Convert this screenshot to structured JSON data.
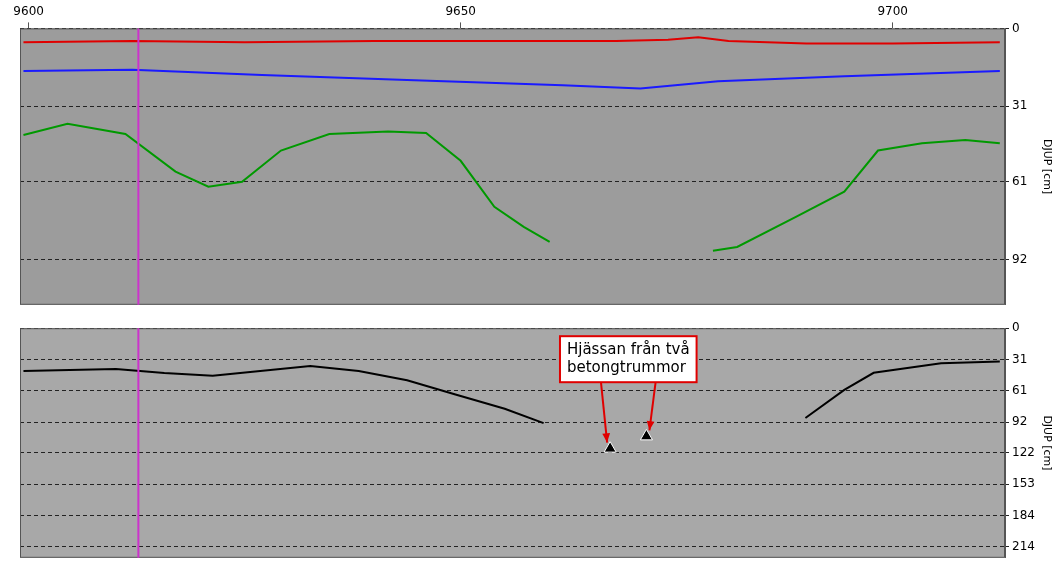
{
  "chart_data": [
    {
      "type": "line",
      "xlim": [
        9599,
        9713
      ],
      "xticks": [
        9600,
        9650,
        9700
      ],
      "ylim": [
        0,
        110
      ],
      "yticks": [
        0,
        31,
        61,
        92
      ],
      "y_label": "DJUP [cm]",
      "grid": true,
      "cursor": {
        "x": 9612.7,
        "color": "#cc33cc"
      },
      "series": [
        {
          "color": "#e00000",
          "x": [
            9599.4,
            9612,
            9625,
            9640,
            9655,
            9668,
            9674,
            9677.5,
            9681,
            9690,
            9700,
            9712.4
          ],
          "values": [
            5.5,
            5,
            5.5,
            5,
            5,
            5,
            4.5,
            3.5,
            5,
            6,
            6,
            5.5
          ]
        },
        {
          "color": "#1a1aff",
          "x": [
            9599.4,
            9612,
            9627,
            9643.8,
            9661.8,
            9670.8,
            9679.8,
            9694.4,
            9712.4
          ],
          "values": [
            17,
            16.5,
            18.5,
            20.5,
            22.6,
            23.9,
            21,
            19,
            17
          ]
        },
        {
          "color": "#009900",
          "x": [
            9599.4,
            9604.5,
            9611.2,
            9617,
            9620.8,
            9624.7,
            9629.2,
            9634.8,
            9641.6,
            9646,
            9650,
            9653.9,
            9657.3,
            9660.3,
            9670,
            9679.2,
            9682,
            9688.8,
            9694.4,
            9698.3,
            9703.4,
            9708.4,
            9712.4
          ],
          "values": [
            42.4,
            38,
            42,
            57,
            63,
            61,
            48.6,
            42,
            41,
            41.6,
            52.7,
            71,
            79,
            85,
            null,
            88.5,
            87,
            75,
            65,
            48.6,
            45.7,
            44.4,
            45.7
          ]
        }
      ]
    },
    {
      "type": "line",
      "xlim": [
        9599,
        9713
      ],
      "xticks": [
        9600,
        9650,
        9700
      ],
      "ylim": [
        0,
        225
      ],
      "yticks": [
        0,
        31,
        61,
        92,
        122,
        153,
        184,
        214
      ],
      "y_label": "DJUP [cm]",
      "grid": true,
      "tick_labels": "y",
      "cursor": {
        "x": 9612.7,
        "color": "#cc33cc"
      },
      "series": [
        {
          "color": "#000000",
          "x": [
            9599.4,
            9610.1,
            9615.7,
            9621.3,
            9632.6,
            9638.2,
            9643.8,
            9649.4,
            9655.1,
            9659.6,
            9675,
            9689.9,
            9694.4,
            9697.8,
            9705.6,
            9712.4
          ],
          "values": [
            42,
            40,
            44,
            46.5,
            37,
            42,
            51,
            65,
            79,
            93,
            null,
            88,
            60.5,
            43.7,
            34.4,
            32.6
          ]
        }
      ],
      "annotation": {
        "text": "Hjässan från två betongtrummor",
        "color": "#e00000",
        "points": [
          {
            "x": 9667.3,
            "y": 118
          },
          {
            "x": 9671.5,
            "y": 106
          }
        ]
      }
    }
  ]
}
